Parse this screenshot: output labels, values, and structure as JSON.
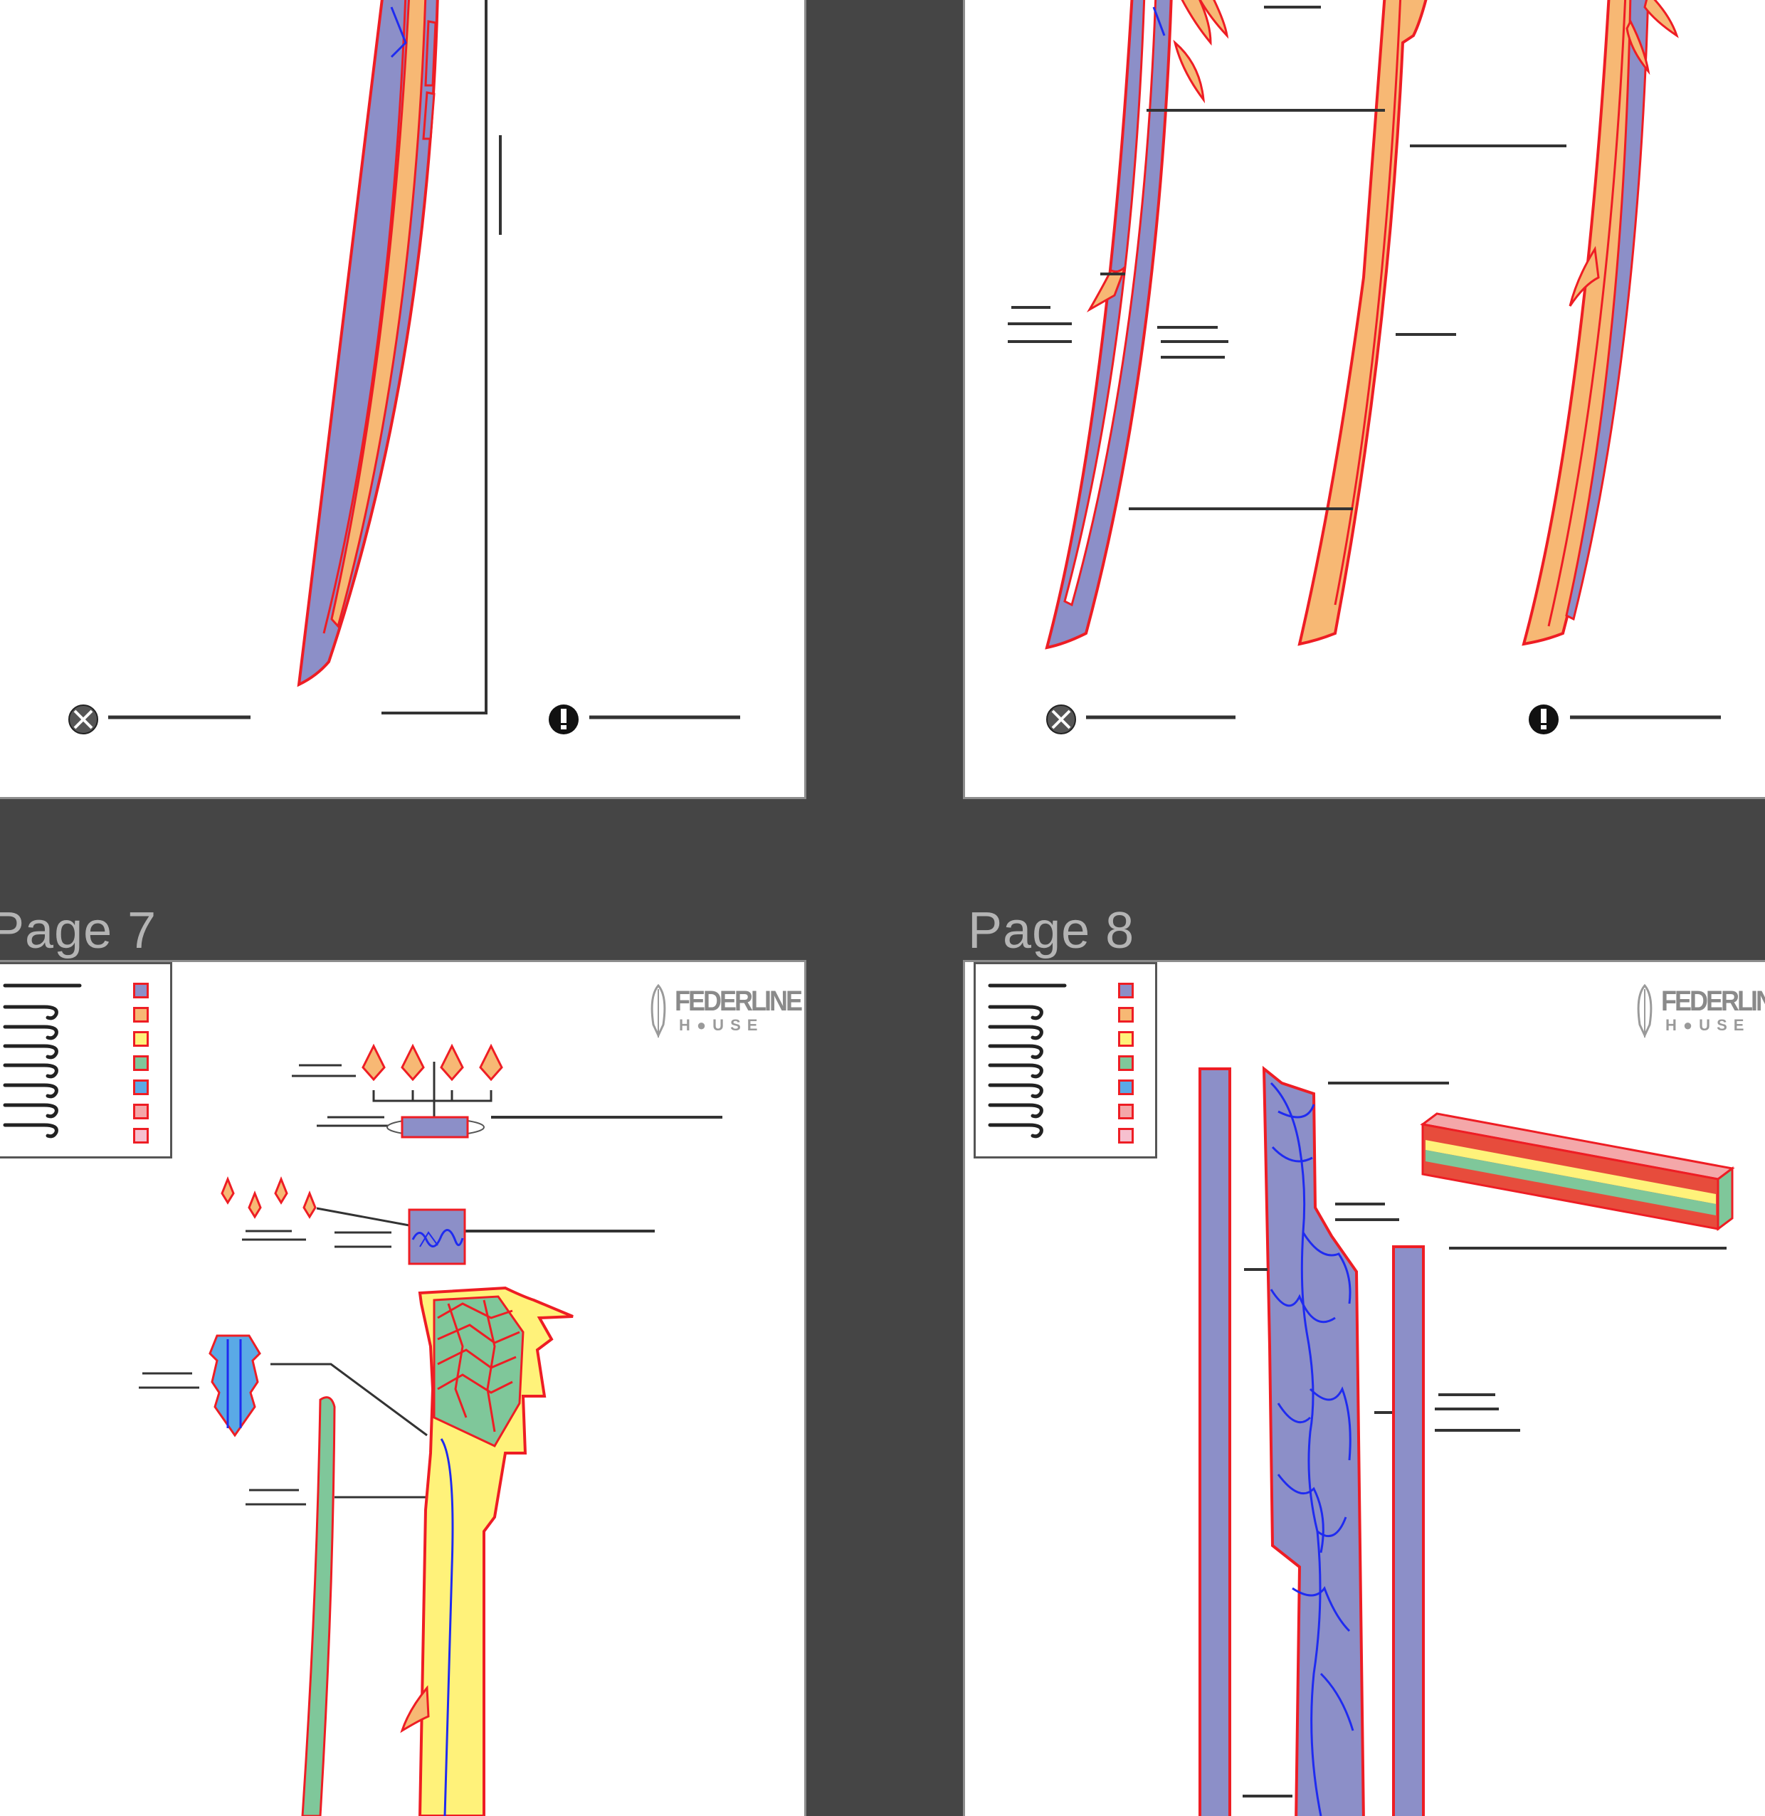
{
  "viewer": {
    "page_labels": {
      "page7": "Page 7",
      "page8": "Page 8"
    }
  },
  "logo": {
    "line1": "FEDERLINE",
    "line2": "H●USE"
  },
  "colors": {
    "background": "#454545",
    "outline_red": "#ee1d24",
    "purple_fill": "#8c8fc8",
    "orange_fill": "#f7b874",
    "yellow_fill": "#fff27a",
    "green_fill": "#7fc79a",
    "blue_fill": "#5aa9e6",
    "vein_blue": "#1f2bf0",
    "label_line": "#333333"
  },
  "legend_swatches": [
    "#8c8fc8",
    "#f7b874",
    "#fff27a",
    "#7fc79a",
    "#5aa9e6",
    "#f4a7a9",
    "#f6c0cf"
  ],
  "icons": [
    "scissors-icon",
    "warning-icon",
    "federline-house-logo"
  ]
}
